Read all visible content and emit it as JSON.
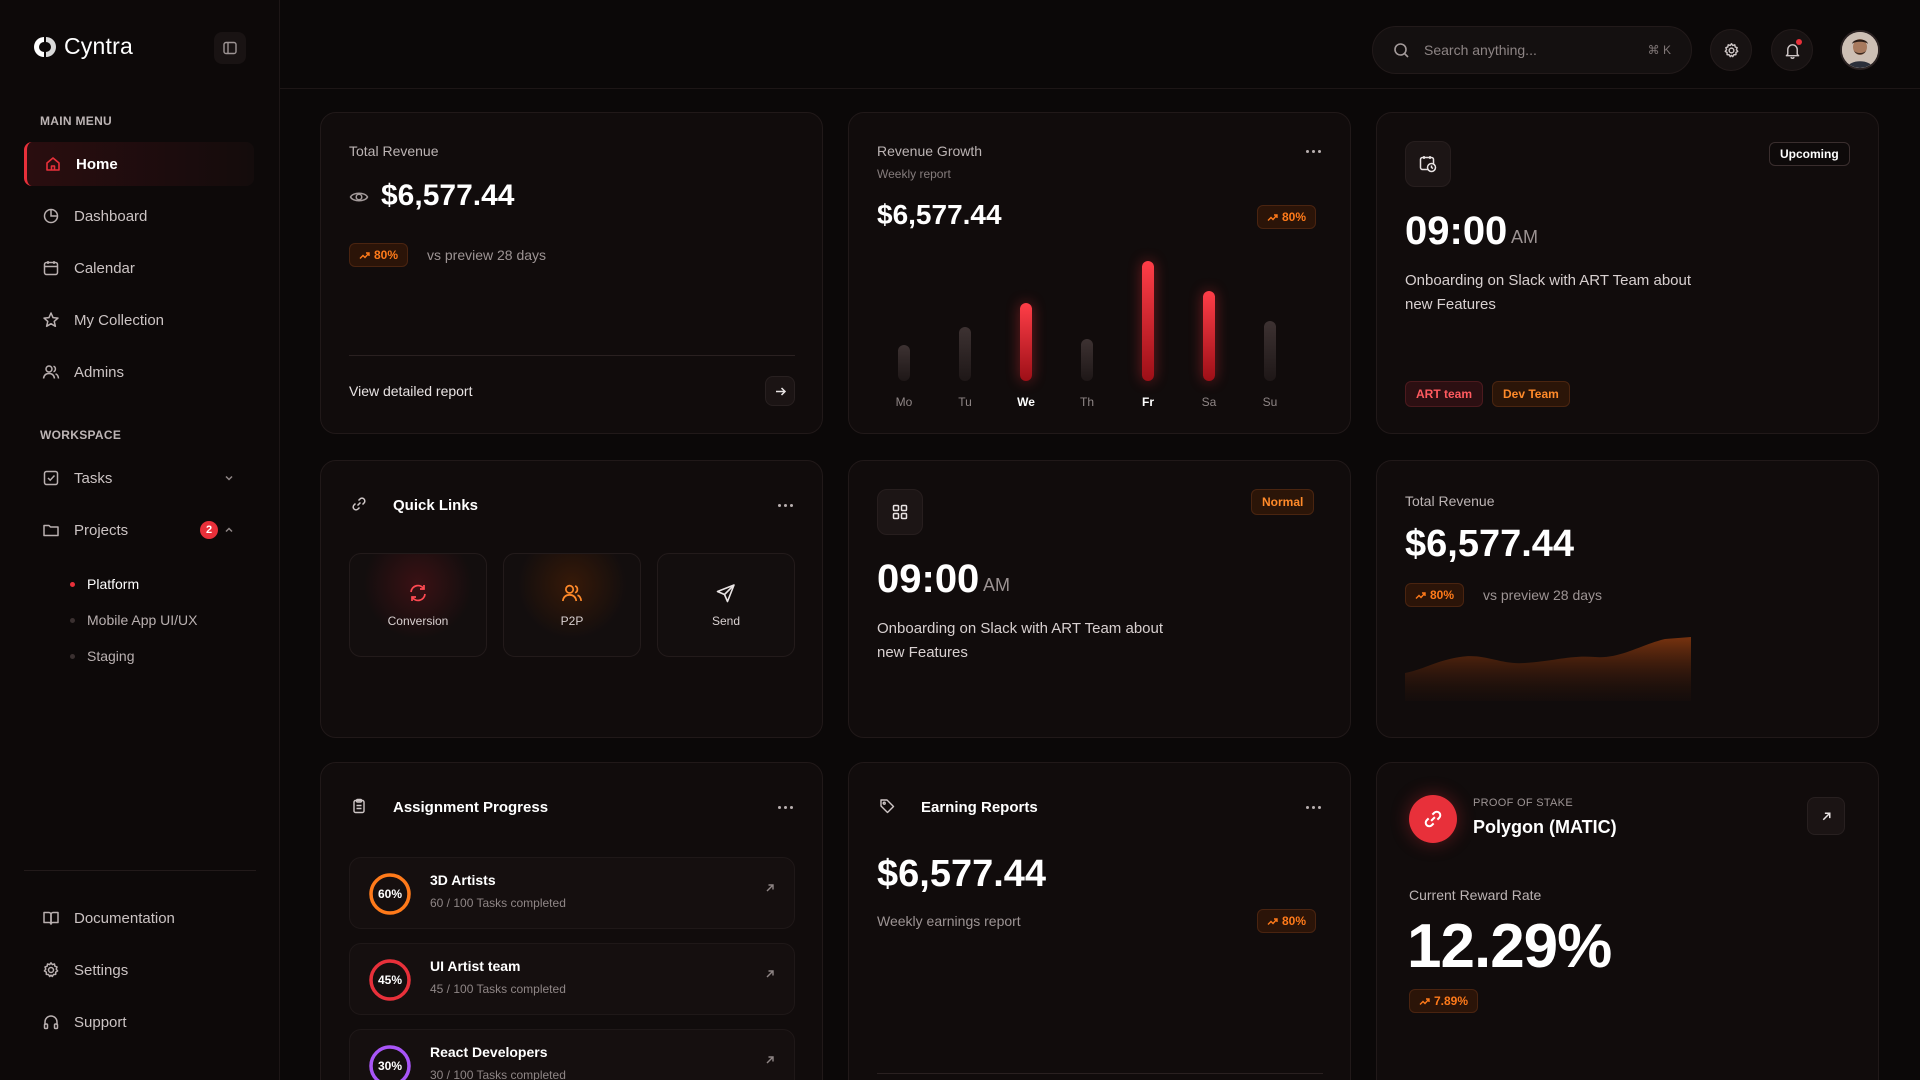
{
  "app": {
    "name": "Cyntra"
  },
  "sidebar": {
    "main_menu_label": "MAIN MENU",
    "main_items": [
      {
        "label": "Home",
        "icon": "home-icon"
      },
      {
        "label": "Dashboard",
        "icon": "pie-chart-icon"
      },
      {
        "label": "Calendar",
        "icon": "calendar-icon"
      },
      {
        "label": "My Collection",
        "icon": "star-icon"
      },
      {
        "label": "Admins",
        "icon": "users-icon"
      }
    ],
    "workspace_label": "WORKSPACE",
    "workspace_items": [
      {
        "label": "Tasks",
        "icon": "checkbox-icon"
      },
      {
        "label": "Projects",
        "icon": "folder-icon",
        "badge": "2"
      }
    ],
    "project_subitems": [
      "Platform",
      "Mobile App UI/UX",
      "Staging"
    ],
    "bottom_items": [
      {
        "label": "Documentation",
        "icon": "book-icon"
      },
      {
        "label": "Settings",
        "icon": "gear-icon"
      },
      {
        "label": "Support",
        "icon": "headphones-icon"
      }
    ]
  },
  "header": {
    "search_placeholder": "Search anything...",
    "search_shortcut": "⌘ K"
  },
  "total_revenue_card": {
    "label": "Total Revenue",
    "amount": "$6,577.44",
    "change": "80%",
    "compare_text": "vs preview 28 days",
    "link_label": "View detailed report"
  },
  "revenue_growth_card": {
    "title": "Revenue Growth",
    "subtitle": "Weekly report",
    "amount": "$6,577.44",
    "change": "80%"
  },
  "chart_data": {
    "type": "bar",
    "categories": [
      "Mo",
      "Tu",
      "We",
      "Th",
      "Fr",
      "Sa",
      "Su"
    ],
    "values": [
      30,
      45,
      65,
      35,
      100,
      75,
      50
    ],
    "highlighted": [
      false,
      false,
      true,
      false,
      true,
      true,
      false
    ],
    "ylim": [
      0,
      100
    ],
    "colors": {
      "highlight": "#e8303a",
      "base": "#2e2525"
    }
  },
  "upcoming_card": {
    "badge": "Upcoming",
    "time": "09:00",
    "ampm": "AM",
    "text": "Onboarding on Slack with ART Team about new Features",
    "tags": [
      "ART team",
      "Dev Team"
    ]
  },
  "quick_links_card": {
    "title": "Quick Links",
    "links": [
      {
        "label": "Conversion",
        "icon": "refresh-icon"
      },
      {
        "label": "P2P",
        "icon": "users-icon"
      },
      {
        "label": "Send",
        "icon": "send-icon"
      }
    ]
  },
  "normal_card": {
    "badge": "Normal",
    "time": "09:00",
    "ampm": "AM",
    "text": "Onboarding on Slack with ART Team about new Features"
  },
  "total_revenue_card_2": {
    "label": "Total Revenue",
    "amount": "$6,577.44",
    "change": "80%",
    "compare_text": "vs preview 28 days"
  },
  "assignment_card": {
    "title": "Assignment Progress",
    "items": [
      {
        "name": "3D Artists",
        "progress": "60%",
        "value": 60,
        "sub": "60 / 100 Tasks completed",
        "color": "#ff7a1a"
      },
      {
        "name": "UI Artist team",
        "progress": "45%",
        "value": 45,
        "sub": "45 / 100 Tasks completed",
        "color": "#e8303a"
      },
      {
        "name": "React Developers",
        "progress": "30%",
        "value": 30,
        "sub": "30 / 100 Tasks completed",
        "color": "#a855f7"
      }
    ]
  },
  "earning_card": {
    "title": "Earning Reports",
    "amount": "$6,577.44",
    "subtitle": "Weekly earnings report",
    "change": "80%"
  },
  "stake_card": {
    "label": "PROOF OF STAKE",
    "name": "Polygon (MATIC)",
    "rate_label": "Current Reward Rate",
    "rate": "12.29%",
    "change": "7.89%"
  },
  "colors": {
    "accent": "#e8303a",
    "orange": "#ff7a1a",
    "purple": "#a855f7"
  }
}
